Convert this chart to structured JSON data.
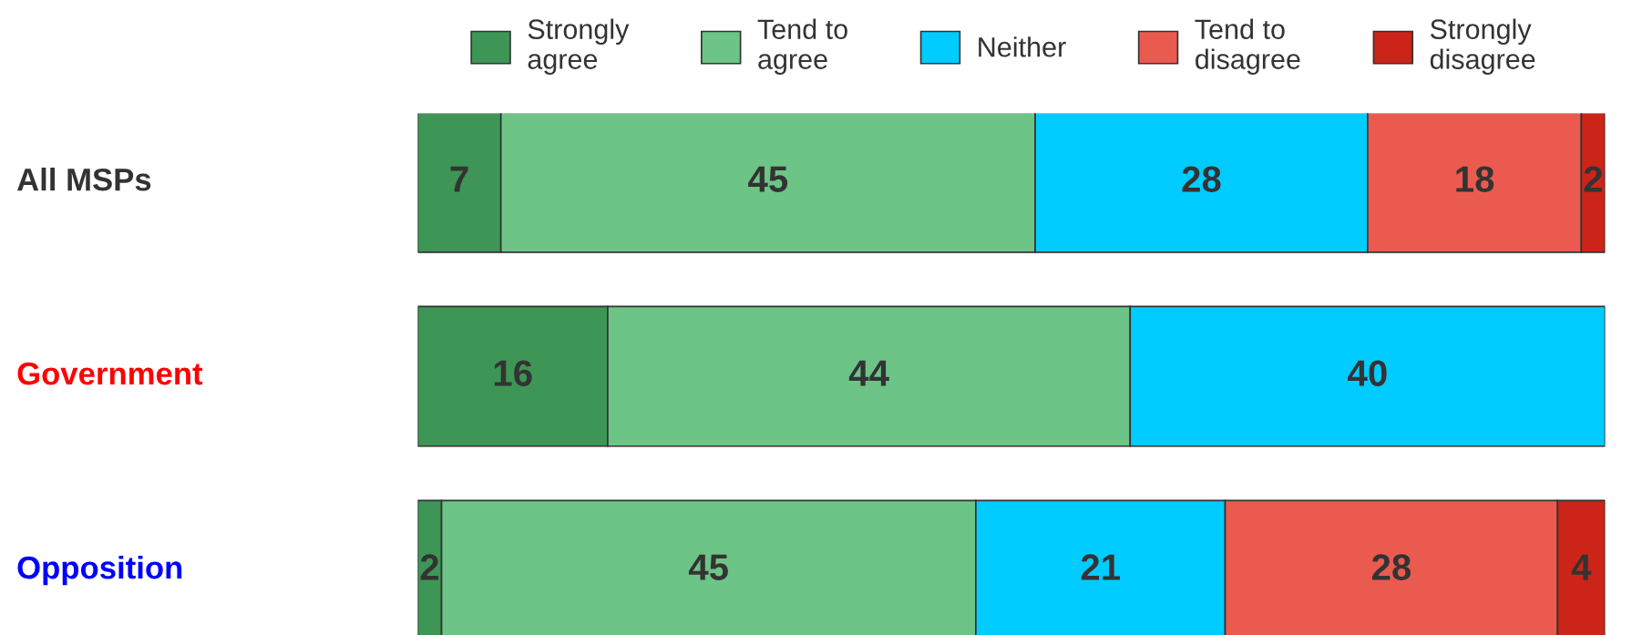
{
  "chart_data": {
    "type": "bar",
    "orientation": "horizontal",
    "stacked": true,
    "categories": [
      "All MSPs",
      "Government",
      "Opposition"
    ],
    "series": [
      {
        "name": "Strongly agree",
        "color": "#3d9655",
        "values": [
          7,
          16,
          2
        ]
      },
      {
        "name": "Tend to agree",
        "color": "#6cc586",
        "values": [
          45,
          44,
          45
        ]
      },
      {
        "name": "Neither",
        "color": "#00ccff",
        "values": [
          28,
          40,
          21
        ]
      },
      {
        "name": "Tend to disagree",
        "color": "#eb5a4f",
        "values": [
          18,
          null,
          28
        ]
      },
      {
        "name": "Strongly disagree",
        "color": "#cc2418",
        "values": [
          2,
          null,
          4
        ]
      }
    ],
    "xlim": [
      0,
      100
    ],
    "data_labels": true,
    "legend": "top"
  }
}
